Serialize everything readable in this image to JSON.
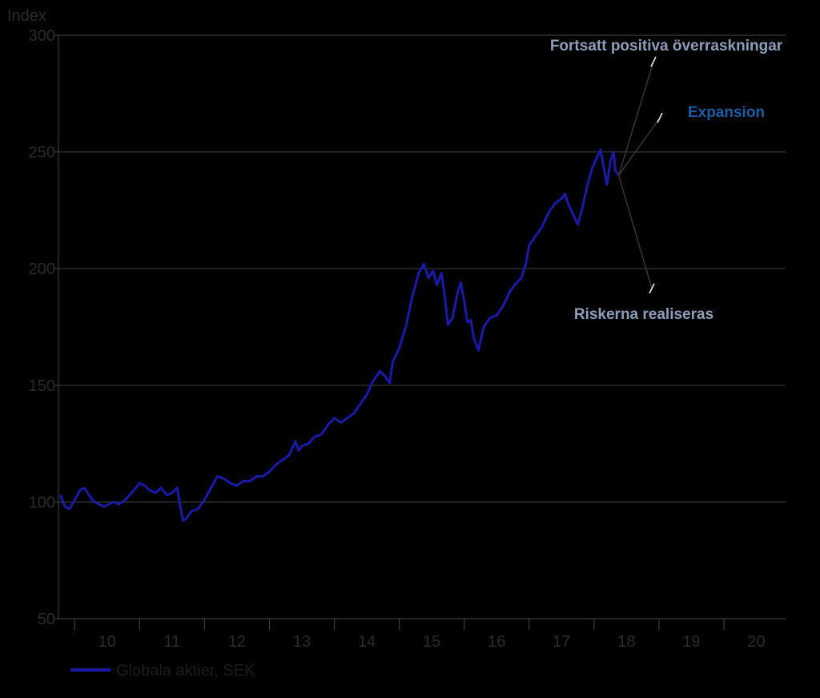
{
  "chart_data": {
    "type": "line",
    "ylabel": "Index",
    "ylim": [
      50,
      300
    ],
    "y_ticks": [
      "50",
      "100",
      "150",
      "200",
      "250",
      "300"
    ],
    "xlim": [
      2009.75,
      2020.95
    ],
    "x_ticks": [
      {
        "label": "10",
        "at": 2010.5
      },
      {
        "label": "11",
        "at": 2011.5
      },
      {
        "label": "12",
        "at": 2012.5
      },
      {
        "label": "13",
        "at": 2013.5
      },
      {
        "label": "14",
        "at": 2014.5
      },
      {
        "label": "15",
        "at": 2015.5
      },
      {
        "label": "16",
        "at": 2016.5
      },
      {
        "label": "17",
        "at": 2017.5
      },
      {
        "label": "18",
        "at": 2018.5
      },
      {
        "label": "19",
        "at": 2019.5
      },
      {
        "label": "20",
        "at": 2020.5
      }
    ],
    "grid": true,
    "legend_position": "bottom-left",
    "series": [
      {
        "name": "Globala aktier, SEK",
        "color": "#1a1aa6",
        "points": [
          [
            2009.78,
            103
          ],
          [
            2009.85,
            98
          ],
          [
            2009.92,
            97
          ],
          [
            2010.0,
            101
          ],
          [
            2010.08,
            105
          ],
          [
            2010.15,
            106
          ],
          [
            2010.22,
            103
          ],
          [
            2010.3,
            100
          ],
          [
            2010.38,
            99
          ],
          [
            2010.45,
            98
          ],
          [
            2010.52,
            99
          ],
          [
            2010.6,
            100
          ],
          [
            2010.68,
            99
          ],
          [
            2010.78,
            101
          ],
          [
            2010.88,
            104
          ],
          [
            2011.0,
            108
          ],
          [
            2011.08,
            107
          ],
          [
            2011.15,
            105
          ],
          [
            2011.25,
            104
          ],
          [
            2011.33,
            106
          ],
          [
            2011.42,
            103
          ],
          [
            2011.5,
            104
          ],
          [
            2011.58,
            106
          ],
          [
            2011.62,
            99
          ],
          [
            2011.67,
            92
          ],
          [
            2011.72,
            93
          ],
          [
            2011.8,
            96
          ],
          [
            2011.9,
            97
          ],
          [
            2012.0,
            101
          ],
          [
            2012.1,
            106
          ],
          [
            2012.2,
            111
          ],
          [
            2012.3,
            110
          ],
          [
            2012.4,
            108
          ],
          [
            2012.5,
            107
          ],
          [
            2012.6,
            109
          ],
          [
            2012.7,
            109
          ],
          [
            2012.8,
            111
          ],
          [
            2012.9,
            111
          ],
          [
            2013.0,
            113
          ],
          [
            2013.1,
            116
          ],
          [
            2013.2,
            118
          ],
          [
            2013.3,
            120
          ],
          [
            2013.4,
            126
          ],
          [
            2013.45,
            122
          ],
          [
            2013.5,
            124
          ],
          [
            2013.6,
            125
          ],
          [
            2013.7,
            128
          ],
          [
            2013.8,
            129
          ],
          [
            2013.9,
            133
          ],
          [
            2014.0,
            136
          ],
          [
            2014.1,
            134
          ],
          [
            2014.2,
            136
          ],
          [
            2014.3,
            138
          ],
          [
            2014.4,
            142
          ],
          [
            2014.5,
            146
          ],
          [
            2014.6,
            152
          ],
          [
            2014.7,
            156
          ],
          [
            2014.78,
            154
          ],
          [
            2014.85,
            151
          ],
          [
            2014.9,
            160
          ],
          [
            2015.0,
            166
          ],
          [
            2015.1,
            175
          ],
          [
            2015.2,
            188
          ],
          [
            2015.3,
            198
          ],
          [
            2015.38,
            202
          ],
          [
            2015.45,
            196
          ],
          [
            2015.52,
            199
          ],
          [
            2015.58,
            193
          ],
          [
            2015.65,
            198
          ],
          [
            2015.7,
            188
          ],
          [
            2015.75,
            176
          ],
          [
            2015.82,
            179
          ],
          [
            2015.9,
            190
          ],
          [
            2015.95,
            194
          ],
          [
            2016.0,
            186
          ],
          [
            2016.05,
            177
          ],
          [
            2016.1,
            178
          ],
          [
            2016.15,
            170
          ],
          [
            2016.22,
            165
          ],
          [
            2016.3,
            175
          ],
          [
            2016.4,
            179
          ],
          [
            2016.5,
            180
          ],
          [
            2016.6,
            184
          ],
          [
            2016.7,
            190
          ],
          [
            2016.78,
            193
          ],
          [
            2016.88,
            196
          ],
          [
            2016.95,
            202
          ],
          [
            2017.0,
            210
          ],
          [
            2017.1,
            214
          ],
          [
            2017.2,
            218
          ],
          [
            2017.3,
            224
          ],
          [
            2017.4,
            228
          ],
          [
            2017.5,
            230
          ],
          [
            2017.55,
            232
          ],
          [
            2017.6,
            228
          ],
          [
            2017.68,
            223
          ],
          [
            2017.75,
            219
          ],
          [
            2017.82,
            226
          ],
          [
            2017.9,
            236
          ],
          [
            2017.97,
            243
          ],
          [
            2018.05,
            248
          ],
          [
            2018.1,
            251
          ],
          [
            2018.15,
            243
          ],
          [
            2018.2,
            236
          ],
          [
            2018.25,
            246
          ],
          [
            2018.3,
            250
          ],
          [
            2018.33,
            242
          ],
          [
            2018.38,
            240
          ]
        ]
      }
    ],
    "annotations": [
      {
        "text": "Fortsatt positiva överraskningar",
        "color": "#8e9db8"
      },
      {
        "text": "Expansion",
        "color": "#1b5ea3"
      },
      {
        "text": "Riskerna realiseras",
        "color": "#8e9db8"
      }
    ]
  }
}
